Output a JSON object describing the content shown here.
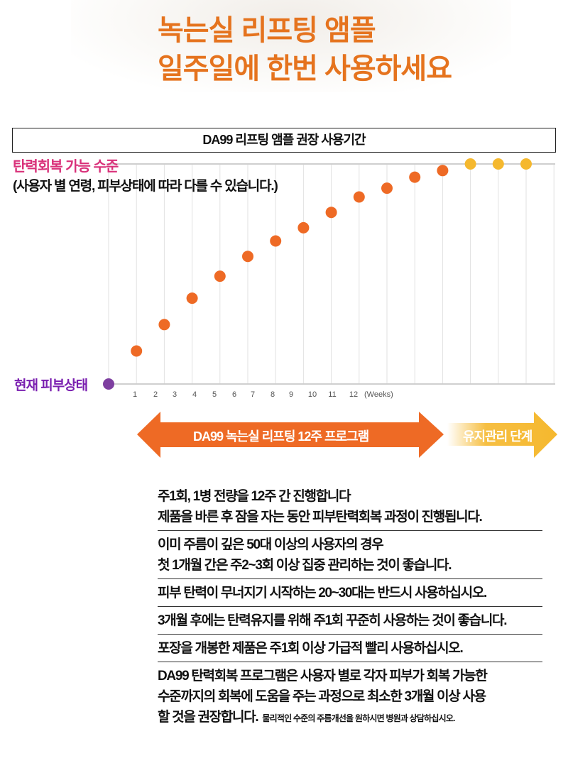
{
  "headline": {
    "line1": "녹는실 리프팅 앰플",
    "line2": "일주일에 한번 사용하세요"
  },
  "chart_data": {
    "type": "scatter",
    "title": "DA99 리프팅 앰플 권장 사용기간",
    "ylabel_top": "탄력회복 가능 수준",
    "ylabel_top_note": "(사용자 별 연령, 피부상태에 따라 다를 수 있습니다.)",
    "ylabel_bottom": "현재 피부상태",
    "xlabel": "(Weeks)",
    "x_ticks": [
      "1",
      "2",
      "3",
      "4",
      "5",
      "6",
      "7",
      "8",
      "9",
      "10",
      "11",
      "12"
    ],
    "ylim": [
      0,
      100
    ],
    "series": [
      {
        "name": "DA99 녹는실 리프팅 12주 프로그램",
        "color": "#ee6a25",
        "x": [
          1,
          2,
          3,
          4,
          5,
          6,
          7,
          8,
          9,
          10,
          11,
          12
        ],
        "values": [
          15,
          27,
          39,
          49,
          58,
          65,
          71,
          78,
          85,
          89,
          94,
          97
        ]
      },
      {
        "name": "유지관리 단계",
        "color": "#f5b82e",
        "x": [
          13,
          14,
          15
        ],
        "values": [
          100,
          100,
          100
        ]
      }
    ],
    "start_point": {
      "x": 0,
      "value": 0,
      "color": "#7e3fa0"
    }
  },
  "phases": {
    "program": "DA99 녹는실 리프팅 12주 프로그램",
    "maintenance": "유지관리 단계"
  },
  "notes": [
    {
      "lines": [
        "주1회, 1병 전량을 12주 간 진행합니다",
        "제품을 바른 후 잠을 자는 동안 피부탄력회복 과정이 진행됩니다."
      ]
    },
    {
      "lines": [
        "이미 주름이 깊은 50대 이상의 사용자의 경우",
        "첫 1개월 간은 주2~3회 이상 집중 관리하는 것이 좋습니다."
      ]
    },
    {
      "lines": [
        "피부 탄력이 무너지기 시작하는 20~30대는 반드시 사용하십시오."
      ]
    },
    {
      "lines": [
        "3개월 후에는 탄력유지를 위해 주1회 꾸준히 사용하는 것이 좋습니다."
      ]
    },
    {
      "lines": [
        "포장을 개봉한 제품은 주1회 이상 가급적 빨리 사용하십시오."
      ]
    },
    {
      "lines": [
        "DA99 탄력회복 프로그램은 사용자 별로 각자 피부가 회복 가능한",
        "수준까지의 회복에 도움을 주는 과정으로 최소한 3개월 이상 사용",
        "할 것을 권장합니다."
      ],
      "small": "물리적인 수준의 주름개선을 원하시면 병원과 상담하십시오."
    }
  ]
}
